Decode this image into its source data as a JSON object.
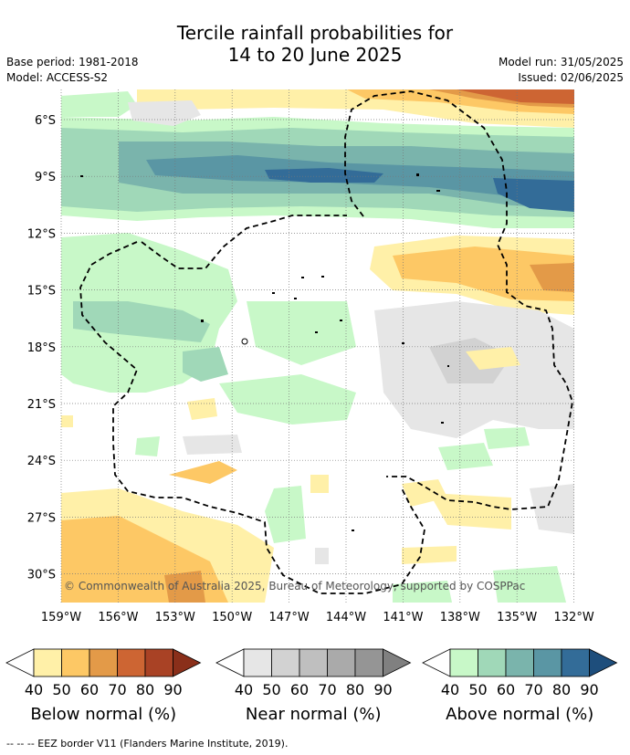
{
  "header": {
    "title_line1": "Tercile rainfall probabilities for",
    "title_line2": "14 to 20 June 2025",
    "base_period": "Base period: 1981-2018",
    "model": "Model: ACCESS-S2",
    "model_run": "Model run: 31/05/2025",
    "issued": "Issued: 02/06/2025"
  },
  "map": {
    "lat_labels": [
      "6°S",
      "9°S",
      "12°S",
      "15°S",
      "18°S",
      "21°S",
      "24°S",
      "27°S",
      "30°S"
    ],
    "lon_labels": [
      "159°W",
      "156°W",
      "153°W",
      "150°W",
      "147°W",
      "144°W",
      "141°W",
      "138°W",
      "135°W",
      "132°W"
    ],
    "copyright": "© Commonwealth of Australia 2025, Bureau of Meteorology, supported by COSPPac"
  },
  "colorbars": [
    {
      "name": "below",
      "label": "Below normal (%)",
      "ticks": [
        "40",
        "50",
        "60",
        "70",
        "80",
        "90"
      ],
      "colors": [
        "#fff0a8",
        "#fdc865",
        "#e39a48",
        "#cd6533",
        "#a94225",
        "#8a2f1a"
      ]
    },
    {
      "name": "near",
      "label": "Near normal (%)",
      "ticks": [
        "40",
        "50",
        "60",
        "70",
        "80",
        "90"
      ],
      "colors": [
        "#e6e6e6",
        "#d2d2d2",
        "#bfbfbf",
        "#aaaaaa",
        "#959595",
        "#808080"
      ]
    },
    {
      "name": "above",
      "label": "Above normal (%)",
      "ticks": [
        "40",
        "50",
        "60",
        "70",
        "80",
        "90"
      ],
      "colors": [
        "#c8f8c8",
        "#a0d8b8",
        "#7ab4ac",
        "#5a96a4",
        "#336c98",
        "#1e4e7c"
      ]
    }
  ],
  "footer": "-- -- -- EEZ border V11 (Flanders Marine Institute, 2019)."
}
